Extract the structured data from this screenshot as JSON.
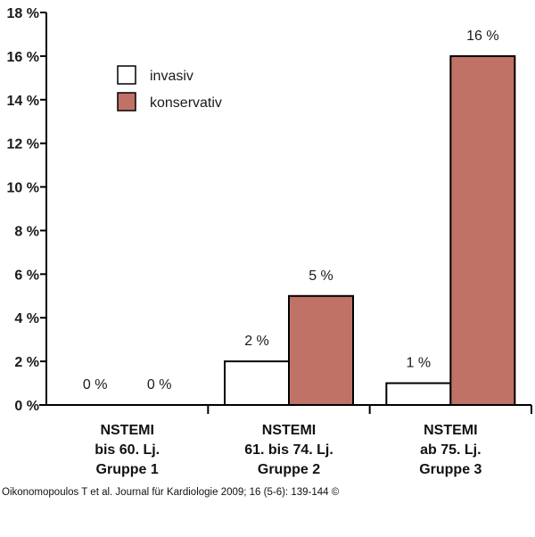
{
  "chart_data": {
    "type": "bar",
    "categories": [
      [
        "NSTEMI",
        "bis 60. Lj.",
        "Gruppe 1"
      ],
      [
        "NSTEMI",
        "61. bis 74. Lj.",
        "Gruppe 2"
      ],
      [
        "NSTEMI",
        "ab 75. Lj.",
        "Gruppe 3"
      ]
    ],
    "series": [
      {
        "name": "invasiv",
        "values": [
          0,
          2,
          1
        ],
        "labels": [
          "0 %",
          "2 %",
          "1 %"
        ],
        "color": "#ffffff"
      },
      {
        "name": "konservativ",
        "values": [
          0,
          5,
          16
        ],
        "labels": [
          "0 %",
          "5 %",
          "16 %"
        ],
        "color": "#c07266"
      }
    ],
    "y_ticks": [
      0,
      2,
      4,
      6,
      8,
      10,
      12,
      14,
      16,
      18
    ],
    "y_tick_labels": [
      "0 %",
      "2 %",
      "4 %",
      "6 %",
      "8 %",
      "10 %",
      "12 %",
      "14 %",
      "16 %",
      "18 %"
    ],
    "ylim": [
      0,
      18
    ],
    "grid": false,
    "legend": {
      "placement": "top-left"
    }
  },
  "credit": "Oikonomopoulos T et al. Journal für Kardiologie 2009; 16 (5-6): 139-144 ©"
}
